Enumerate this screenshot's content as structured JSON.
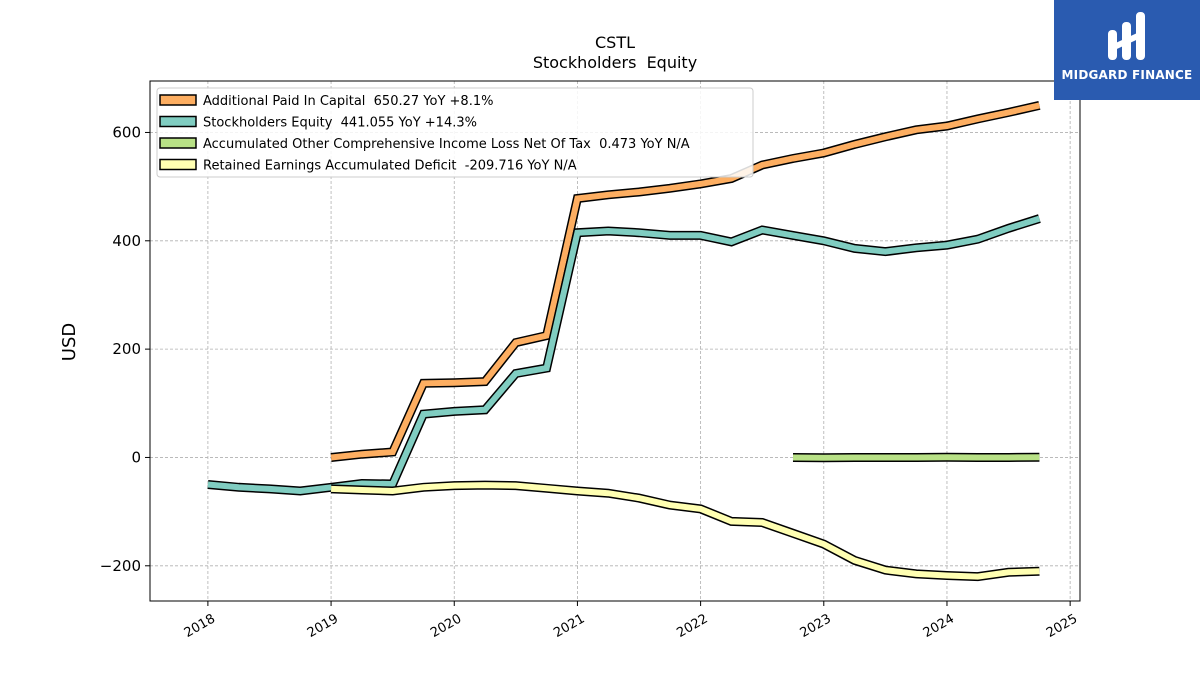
{
  "chart_data": {
    "type": "line",
    "title": "CSTL",
    "subtitle": "Stockholders  Equity",
    "ylabel": "USD",
    "xlabel": "",
    "ylim": [
      -265,
      695
    ],
    "xlim": [
      2017.53,
      2025.08
    ],
    "x_ticks": [
      2018,
      2019,
      2020,
      2021,
      2022,
      2023,
      2024,
      2025
    ],
    "x_tick_labels": [
      "2018",
      "2019",
      "2020",
      "2021",
      "2022",
      "2023",
      "2024",
      "2025"
    ],
    "y_ticks": [
      -200,
      0,
      200,
      400,
      600
    ],
    "y_tick_labels": [
      "−200",
      "0",
      "200",
      "400",
      "600"
    ],
    "grid": true,
    "legend_position": "top-left",
    "series": [
      {
        "name": "Additional Paid In Capital",
        "legend": "Additional Paid In Capital  650.27 YoY +8.1%",
        "color": "#fdae61",
        "x": [
          2019.0,
          2019.25,
          2019.5,
          2019.75,
          2020.0,
          2020.25,
          2020.5,
          2020.75,
          2021.0,
          2021.25,
          2021.5,
          2021.75,
          2022.0,
          2022.25,
          2022.5,
          2022.75,
          2023.0,
          2023.25,
          2023.5,
          2023.75,
          2024.0,
          2024.25,
          2024.5,
          2024.75
        ],
        "y": [
          0,
          6,
          10,
          137,
          138,
          140,
          212,
          225,
          478,
          485,
          490,
          497,
          505,
          515,
          540,
          552,
          562,
          578,
          592,
          605,
          612,
          625,
          637,
          650
        ]
      },
      {
        "name": "Stockholders Equity",
        "legend": "Stockholders Equity  441.055 YoY +14.3%",
        "color": "#80cdc1",
        "x": [
          2018.0,
          2018.25,
          2018.5,
          2018.75,
          2019.0,
          2019.25,
          2019.5,
          2019.75,
          2020.0,
          2020.25,
          2020.5,
          2020.75,
          2021.0,
          2021.25,
          2021.5,
          2021.75,
          2022.0,
          2022.25,
          2022.5,
          2022.75,
          2023.0,
          2023.25,
          2023.5,
          2023.75,
          2024.0,
          2024.25,
          2024.5,
          2024.75
        ],
        "y": [
          -50,
          -55,
          -58,
          -62,
          -55,
          -48,
          -49,
          80,
          85,
          88,
          155,
          165,
          415,
          418,
          415,
          410,
          410,
          398,
          420,
          410,
          400,
          386,
          380,
          387,
          392,
          403,
          423,
          441
        ]
      },
      {
        "name": "Accumulated Other Comprehensive Income Loss Net Of Tax",
        "legend": "Accumulated Other Comprehensive Income Loss Net Of Tax  0.473 YoY N/A",
        "color": "#b8e186",
        "x": [
          2022.75,
          2023.0,
          2023.25,
          2023.5,
          2023.75,
          2024.0,
          2024.25,
          2024.5,
          2024.75
        ],
        "y": [
          0,
          -0.5,
          0,
          0,
          0,
          0.5,
          0,
          0,
          0.5
        ]
      },
      {
        "name": "Retained Earnings Accumulated Deficit",
        "legend": "Retained Earnings Accumulated Deficit  -209.716 YoY N/A",
        "color": "#ffffb2",
        "x": [
          2019.0,
          2019.25,
          2019.5,
          2019.75,
          2020.0,
          2020.25,
          2020.5,
          2020.75,
          2021.0,
          2021.25,
          2021.5,
          2021.75,
          2022.0,
          2022.25,
          2022.5,
          2022.75,
          2023.0,
          2023.25,
          2023.5,
          2023.75,
          2024.0,
          2024.25,
          2024.5,
          2024.75
        ],
        "y": [
          -58,
          -60,
          -62,
          -55,
          -52,
          -51,
          -52,
          -57,
          -62,
          -66,
          -75,
          -88,
          -95,
          -118,
          -120,
          -140,
          -160,
          -190,
          -208,
          -215,
          -218,
          -220,
          -212,
          -210
        ]
      }
    ]
  },
  "logo": {
    "text": "MIDGARD FINANCE"
  }
}
